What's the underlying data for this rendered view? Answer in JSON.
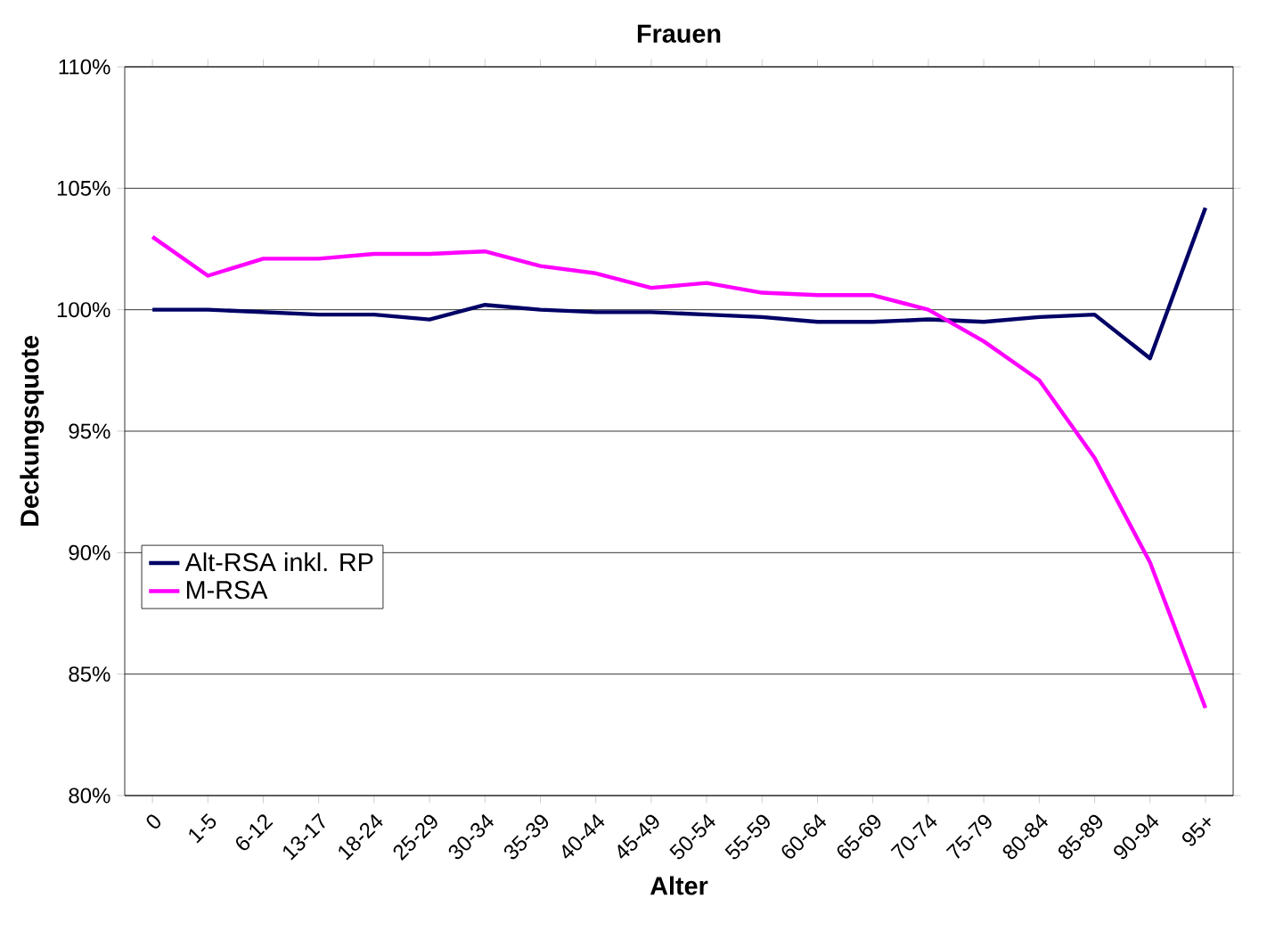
{
  "chart_data": {
    "type": "line",
    "title": "Frauen",
    "xlabel": "Alter",
    "ylabel": "Deckungsquote",
    "categories": [
      "0",
      "1-5",
      "6-12",
      "13-17",
      "18-24",
      "25-29",
      "30-34",
      "35-39",
      "40-44",
      "45-49",
      "50-54",
      "55-59",
      "60-64",
      "65-69",
      "70-74",
      "75-79",
      "80-84",
      "85-89",
      "90-94",
      "95+"
    ],
    "series": [
      {
        "name": "Alt-RSA inkl. RP",
        "color": "#000066",
        "values": [
          100.0,
          100.0,
          99.9,
          99.8,
          99.8,
          99.6,
          100.2,
          100.0,
          99.9,
          99.9,
          99.8,
          99.7,
          99.5,
          99.5,
          99.6,
          99.5,
          99.7,
          99.8,
          98.0,
          104.2
        ]
      },
      {
        "name": "M-RSA",
        "color": "#ff00ff",
        "values": [
          103.0,
          101.4,
          102.1,
          102.1,
          102.3,
          102.3,
          102.4,
          101.8,
          101.5,
          100.9,
          101.1,
          100.7,
          100.6,
          100.6,
          100.0,
          98.7,
          97.1,
          93.9,
          89.6,
          83.6
        ]
      }
    ],
    "ylim": [
      80,
      110
    ],
    "yticks": [
      {
        "value": 80,
        "label": "80%"
      },
      {
        "value": 85,
        "label": "85%"
      },
      {
        "value": 90,
        "label": "90%"
      },
      {
        "value": 95,
        "label": "95%"
      },
      {
        "value": 100,
        "label": "100%"
      },
      {
        "value": 105,
        "label": "105%"
      },
      {
        "value": 110,
        "label": "110%"
      }
    ],
    "grid": "y",
    "legend": "left",
    "marker": "none",
    "line_style": "solid"
  }
}
